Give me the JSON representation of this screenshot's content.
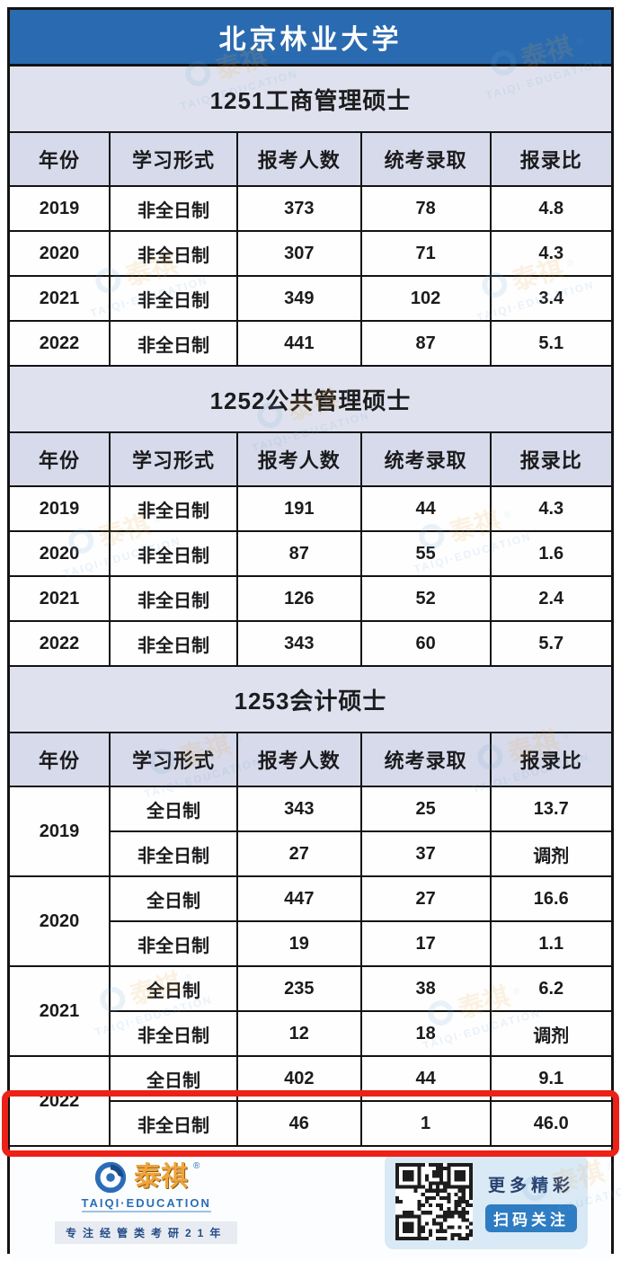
{
  "title": "北京林业大学",
  "chart_data": [
    {
      "type": "table",
      "title": "1251工商管理硕士",
      "columns": [
        "年份",
        "学习形式",
        "报考人数",
        "统考录取",
        "报录比"
      ],
      "rows": [
        {
          "year": "2019",
          "mode": "非全日制",
          "applicants": "373",
          "admitted": "78",
          "ratio": "4.8"
        },
        {
          "year": "2020",
          "mode": "非全日制",
          "applicants": "307",
          "admitted": "71",
          "ratio": "4.3"
        },
        {
          "year": "2021",
          "mode": "非全日制",
          "applicants": "349",
          "admitted": "102",
          "ratio": "3.4"
        },
        {
          "year": "2022",
          "mode": "非全日制",
          "applicants": "441",
          "admitted": "87",
          "ratio": "5.1"
        }
      ]
    },
    {
      "type": "table",
      "title": "1252公共管理硕士",
      "columns": [
        "年份",
        "学习形式",
        "报考人数",
        "统考录取",
        "报录比"
      ],
      "rows": [
        {
          "year": "2019",
          "mode": "非全日制",
          "applicants": "191",
          "admitted": "44",
          "ratio": "4.3"
        },
        {
          "year": "2020",
          "mode": "非全日制",
          "applicants": "87",
          "admitted": "55",
          "ratio": "1.6"
        },
        {
          "year": "2021",
          "mode": "非全日制",
          "applicants": "126",
          "admitted": "52",
          "ratio": "2.4"
        },
        {
          "year": "2022",
          "mode": "非全日制",
          "applicants": "343",
          "admitted": "60",
          "ratio": "5.7"
        }
      ]
    },
    {
      "type": "table",
      "title": "1253会计硕士",
      "columns": [
        "年份",
        "学习形式",
        "报考人数",
        "统考录取",
        "报录比"
      ],
      "rows": [
        {
          "year": "2019",
          "mode": "全日制",
          "applicants": "343",
          "admitted": "25",
          "ratio": "13.7"
        },
        {
          "mode": "非全日制",
          "applicants": "27",
          "admitted": "37",
          "ratio": "调剂"
        },
        {
          "year": "2020",
          "mode": "全日制",
          "applicants": "447",
          "admitted": "27",
          "ratio": "16.6"
        },
        {
          "mode": "非全日制",
          "applicants": "19",
          "admitted": "17",
          "ratio": "1.1"
        },
        {
          "year": "2021",
          "mode": "全日制",
          "applicants": "235",
          "admitted": "38",
          "ratio": "6.2"
        },
        {
          "mode": "非全日制",
          "applicants": "12",
          "admitted": "18",
          "ratio": "调剂"
        },
        {
          "year": "2022",
          "mode": "全日制",
          "applicants": "402",
          "admitted": "44",
          "ratio": "9.1"
        },
        {
          "mode": "非全日制",
          "applicants": "46",
          "admitted": "1",
          "ratio": "46.0",
          "highlighted": true
        }
      ]
    }
  ],
  "watermark": {
    "brand": "泰祺",
    "arc": "TAIQI·EDUCATION",
    "reg": "®"
  },
  "footer": {
    "brand": "泰祺",
    "reg": "®",
    "brand_sub": "TAIQI·EDUCATION",
    "tagline": "专注经管类考研21年",
    "qr_caption": "更多精彩",
    "qr_button": "扫码关注"
  },
  "colors": {
    "banner_blue": "#2a6ab0",
    "section_bg": "#dfe2ee",
    "header_bg": "#d6daea",
    "highlight_red": "#ec2117",
    "button_blue": "#2e7cc2"
  }
}
